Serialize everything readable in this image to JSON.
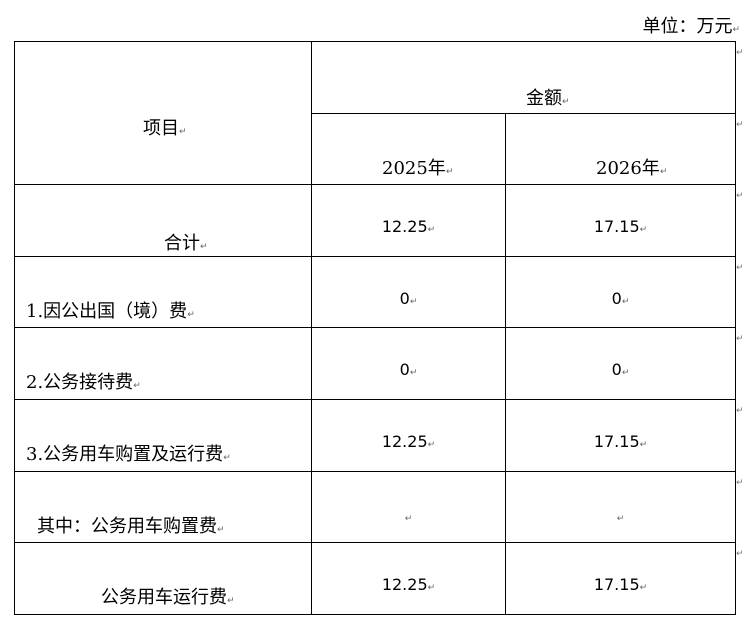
{
  "unit_label": "单位：万元",
  "header": {
    "item": "项目",
    "amount": "金额",
    "year1": "2025年",
    "year2": "2026年"
  },
  "rows": [
    {
      "label": "合计",
      "v2025": "12.25",
      "v2026": "17.15"
    },
    {
      "label": "1.因公出国（境）费",
      "v2025": "0",
      "v2026": "0"
    },
    {
      "label": "2.公务接待费",
      "v2025": "0",
      "v2026": "0"
    },
    {
      "label": "3.公务用车购置及运行费",
      "v2025": "12.25",
      "v2026": "17.15"
    },
    {
      "label": "其中：公务用车购置费",
      "v2025": "",
      "v2026": ""
    },
    {
      "label": "公务用车运行费",
      "v2025": "12.25",
      "v2026": "17.15"
    }
  ]
}
